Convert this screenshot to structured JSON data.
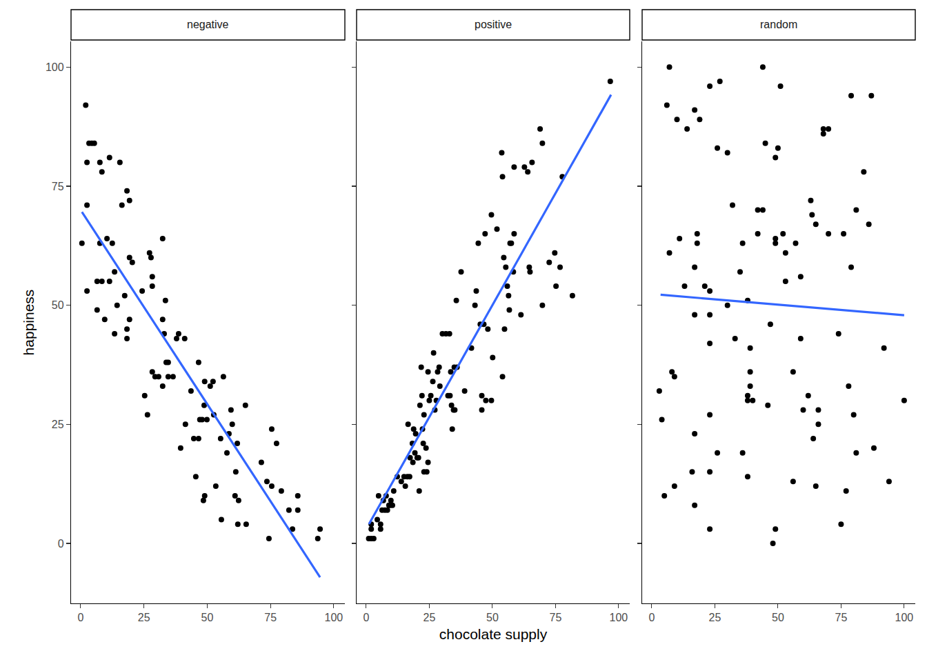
{
  "chart_data": [
    {
      "type": "scatter",
      "title": "negative",
      "y_label": "happiness",
      "xlim": [
        -3.8,
        104.4
      ],
      "ylim": [
        -12.6,
        105.4
      ],
      "xticks": [
        0,
        25,
        50,
        75,
        100
      ],
      "yticks": [
        0,
        25,
        50,
        75,
        100
      ],
      "grid": false,
      "series": [
        {
          "type": "scatter",
          "color": "#000000",
          "x": [
            0.5,
            2,
            2.5,
            2.5,
            2.5,
            3.3,
            4.4,
            5.4,
            6.5,
            6.5,
            7.6,
            7.6,
            8.4,
            8.4,
            9.5,
            10.4,
            11.4,
            11.4,
            12.5,
            13.4,
            13.4,
            14.4,
            15.5,
            16.3,
            17.4,
            18.3,
            18.3,
            18.3,
            19.3,
            19.3,
            19.3,
            20.4,
            24.3,
            25.3,
            26.4,
            27.2,
            27.8,
            28.3,
            28.3,
            28.3,
            29.4,
            30.8,
            32.4,
            32.4,
            32.4,
            33,
            33.5,
            33.8,
            34.6,
            34.6,
            36.5,
            37.9,
            38.7,
            39.5,
            41.1,
            41.4,
            43.6,
            44.7,
            45.5,
            46.6,
            46.6,
            47.1,
            48,
            48.5,
            48.8,
            49,
            49,
            49.9,
            51.2,
            52.3,
            52.6,
            53.4,
            55.3,
            55.6,
            56.4,
            57.8,
            58.6,
            59.4,
            59.9,
            61,
            61.3,
            61.9,
            62.1,
            62.4,
            65.1,
            65.4,
            71.4,
            74.4,
            75.5,
            77.4,
            73.6,
            75.5,
            79.3,
            82.3,
            85.8,
            83.7,
            85.8,
            93.7,
            94.6
          ],
          "values": [
            63,
            92,
            80,
            71,
            53,
            84,
            84,
            84,
            55,
            49,
            80,
            63,
            55,
            78,
            47,
            64,
            55,
            81,
            63,
            57,
            44,
            50,
            80,
            71,
            52,
            74,
            45,
            43,
            72,
            60,
            47,
            59,
            53,
            31,
            27,
            61,
            60,
            56,
            54,
            36,
            35,
            35,
            64,
            47,
            33,
            44,
            51,
            38,
            38,
            35,
            35,
            43,
            44,
            20,
            43,
            25,
            32,
            22,
            14,
            38,
            22,
            26,
            26,
            9,
            29,
            10,
            34,
            26,
            33,
            34,
            27,
            12,
            22,
            5,
            35,
            19,
            23,
            28,
            25,
            10,
            15,
            21,
            4,
            9,
            29,
            4,
            17,
            1,
            24,
            21,
            13,
            12,
            11,
            7,
            10,
            3,
            7,
            1,
            3
          ]
        },
        {
          "type": "line",
          "color": "#3366ff",
          "x": [
            0.5,
            94.6
          ],
          "values": [
            69.6,
            -7.1
          ]
        }
      ]
    },
    {
      "type": "scatter",
      "title": "positive",
      "x_label": "chocolate supply",
      "tick_labels": "x",
      "xlim": [
        -3.8,
        104.4
      ],
      "ylim": [
        -12.6,
        105.4
      ],
      "xticks": [
        0,
        25,
        50,
        75,
        100
      ],
      "yticks": [
        0,
        25,
        50,
        75,
        100
      ],
      "grid": false,
      "series": [
        {
          "type": "scatter",
          "color": "#000000",
          "x": [
            1,
            2,
            3,
            2,
            2,
            4.4,
            4.9,
            5.7,
            5.7,
            6.3,
            6.8,
            7.4,
            7.9,
            8.4,
            9,
            9.5,
            9.8,
            10.4,
            10.9,
            12.3,
            13.9,
            15,
            15.5,
            16.3,
            16.6,
            17.2,
            17.4,
            18.3,
            18.5,
            18.8,
            19.3,
            19.6,
            20.2,
            20.7,
            21,
            21.3,
            21.8,
            22.1,
            22.3,
            22.6,
            22.9,
            22.9,
            23.7,
            24,
            24.5,
            24.5,
            25,
            25.6,
            26.4,
            26.7,
            27.2,
            27.8,
            28.3,
            28.9,
            29.2,
            30.2,
            31.6,
            32.4,
            33,
            33.2,
            33.5,
            33.8,
            34.1,
            34.6,
            34.9,
            35.1,
            35.7,
            36,
            37.6,
            39,
            41.7,
            43.1,
            43.6,
            44.4,
            45.2,
            45.8,
            45.8,
            46.6,
            47.1,
            47.4,
            48.2,
            49.6,
            50.1,
            49.6,
            51.8,
            53.7,
            54,
            54,
            54.5,
            54.8,
            55.3,
            55.9,
            56.4,
            56.7,
            57,
            57.5,
            58.3,
            58.6,
            58.6,
            61.3,
            62.7,
            64,
            64.6,
            64.9,
            65.7,
            68.9,
            69.8,
            69.8,
            72.5,
            74.7,
            75.2,
            76.8,
            77.7,
            81.7,
            96.7
          ],
          "values": [
            1,
            1,
            1,
            3,
            4,
            5,
            10,
            3,
            4,
            7,
            9,
            7,
            10,
            7,
            8,
            8,
            9,
            8,
            11,
            14,
            13,
            14,
            12,
            14,
            25,
            14,
            18,
            21,
            17,
            24,
            19,
            23,
            18,
            18,
            11,
            29,
            37,
            31,
            24,
            21,
            15,
            27,
            20,
            15,
            17,
            36,
            30,
            31,
            34,
            40,
            28,
            30,
            36,
            37,
            33,
            44,
            44,
            31,
            44,
            31,
            36,
            29,
            24,
            28,
            37,
            28,
            51,
            37,
            57,
            32,
            41,
            50,
            53,
            63,
            46,
            31,
            28,
            46,
            65,
            30,
            45,
            69,
            39,
            30,
            66,
            82,
            77,
            35,
            60,
            45,
            58,
            54,
            52,
            49,
            63,
            63,
            57,
            65,
            79,
            48,
            79,
            78,
            58,
            57,
            80,
            87,
            84,
            50,
            59,
            61,
            54,
            58,
            77,
            52,
            97
          ]
        },
        {
          "type": "line",
          "color": "#3366ff",
          "x": [
            1.1,
            97
          ],
          "values": [
            4.05,
            94.2
          ]
        }
      ]
    },
    {
      "type": "scatter",
      "title": "random",
      "tick_labels": "x",
      "xlim": [
        -3.8,
        104.4
      ],
      "ylim": [
        -12.6,
        105.4
      ],
      "xticks": [
        0,
        25,
        50,
        75,
        100
      ],
      "yticks": [
        0,
        25,
        50,
        75,
        100
      ],
      "grid": false,
      "series": [
        {
          "type": "scatter",
          "color": "#000000",
          "x": [
            3,
            4,
            5,
            6,
            7,
            7,
            8,
            9,
            9,
            10,
            11,
            13,
            14,
            16,
            17,
            17,
            17,
            17,
            17,
            18,
            18,
            19,
            21,
            23,
            23,
            23,
            23,
            23,
            23,
            23,
            26,
            26,
            27,
            30,
            30,
            32,
            33,
            35,
            36,
            36,
            38,
            38,
            38,
            38,
            39,
            39,
            39,
            40,
            42,
            42,
            44,
            44,
            45,
            46,
            47,
            49,
            50,
            49,
            49,
            48,
            49,
            52,
            53,
            53,
            51,
            57,
            56,
            56,
            59,
            59,
            60,
            62,
            63,
            63.5,
            65,
            64,
            65,
            66,
            66,
            68,
            68,
            70,
            70,
            74,
            75,
            76,
            77,
            78,
            79,
            79,
            80,
            81,
            81,
            84,
            86,
            87,
            88,
            92,
            94,
            100
          ],
          "values": [
            32,
            26,
            10,
            92,
            61,
            100,
            36,
            35,
            12,
            89,
            64,
            54,
            87,
            15,
            91,
            58,
            48,
            23,
            8,
            65,
            63,
            89,
            54,
            53,
            48,
            42,
            96,
            27,
            15,
            3,
            83,
            19,
            97,
            50,
            82,
            71,
            43,
            57,
            63,
            19,
            51,
            31,
            30,
            14,
            41,
            36,
            33,
            30,
            65,
            70,
            70,
            100,
            84,
            29,
            46,
            81,
            83,
            63,
            64,
            0,
            3,
            65,
            61,
            55,
            96,
            63,
            36,
            13,
            56,
            43,
            28,
            31,
            72,
            69,
            12,
            22,
            67,
            28,
            25,
            86,
            87,
            87,
            65,
            44,
            4,
            65,
            11,
            33,
            58,
            94,
            27,
            70,
            19,
            78,
            67,
            94,
            20,
            41,
            13,
            30
          ]
        },
        {
          "type": "line",
          "color": "#3366ff",
          "x": [
            3.5,
            100
          ],
          "values": [
            52.2,
            47.9
          ]
        }
      ]
    }
  ]
}
